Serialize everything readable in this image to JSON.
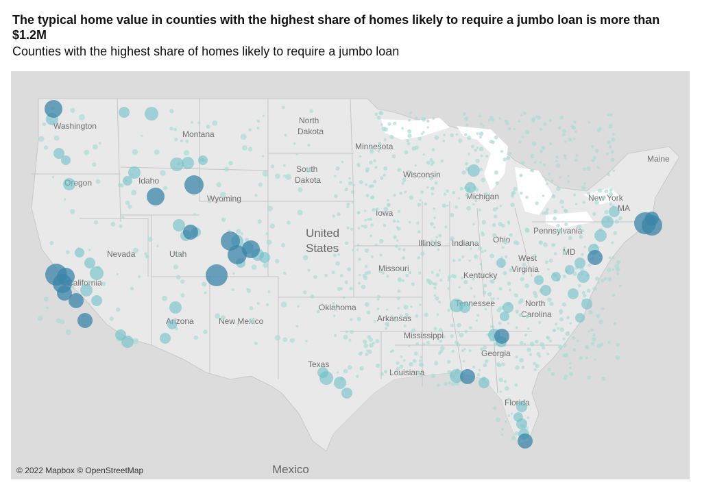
{
  "header": {
    "title": "The typical home value in counties with the highest share of homes likely to require a jumbo loan is more than $1.2M",
    "subtitle": "Counties with the highest share of homes likely to require a jumbo loan"
  },
  "map": {
    "attribution": "© 2022 Mapbox © OpenStreetMap",
    "country_labels": {
      "us_line1": "United",
      "us_line2": "States",
      "mexico": "Mexico"
    },
    "state_labels": [
      "Washington",
      "Montana",
      "North",
      "Dakota",
      "Minnesota",
      "South",
      "Dakota",
      "Wisconsin",
      "Maine",
      "Oregon",
      "Idaho",
      "Wyoming",
      "Michigan",
      "New York",
      "Iowa",
      "Pennsylvania",
      "Nevada",
      "Utah",
      "Illinois",
      "Indiana",
      "Ohio",
      "West",
      "Virginia",
      "Missouri",
      "Kentucky",
      "California",
      "Oklahoma",
      "Tennessee",
      "North",
      "Carolina",
      "Arizona",
      "New Mexico",
      "Arkansas",
      "Mississippi",
      "Georgia",
      "Texas",
      "Louisiana",
      "Florida",
      "MA",
      "MD"
    ],
    "colors": {
      "land": "#e9e9e9",
      "outside": "#dcdcdc",
      "water": "#ffffff",
      "dot_light": "#a9dcd7",
      "dot_mid": "#6cc0c8",
      "dot_dark": "#3b84a8"
    }
  }
}
